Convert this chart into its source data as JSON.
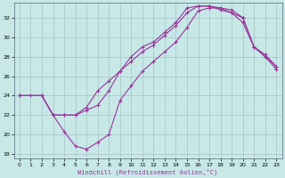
{
  "xlabel": "Windchill (Refroidissement éolien,°C)",
  "xlim": [
    -0.5,
    23.5
  ],
  "ylim": [
    17.5,
    33.5
  ],
  "xticks": [
    0,
    1,
    2,
    3,
    4,
    5,
    6,
    7,
    8,
    9,
    10,
    11,
    12,
    13,
    14,
    15,
    16,
    17,
    18,
    19,
    20,
    21,
    22,
    23
  ],
  "yticks": [
    18,
    20,
    22,
    24,
    26,
    28,
    30,
    32
  ],
  "bg_color": "#c8e8e8",
  "line_color": "#993399",
  "line1_x": [
    0,
    1,
    2,
    3,
    4,
    5,
    6,
    7,
    8,
    9,
    10,
    11,
    12,
    13,
    14,
    15,
    16,
    17,
    18,
    19,
    20,
    21,
    22,
    23
  ],
  "line1_y": [
    24,
    24,
    24,
    22,
    20.3,
    18.8,
    18.5,
    19.2,
    20.0,
    23.5,
    25.0,
    26.5,
    27.5,
    28.5,
    29.5,
    31.0,
    32.7,
    33.0,
    33.0,
    32.8,
    32.0,
    29.0,
    28.0,
    27.0
  ],
  "line2_x": [
    0,
    2,
    3,
    4,
    5,
    6,
    7,
    8,
    9,
    10,
    11,
    12,
    13,
    14,
    15,
    16,
    17,
    18,
    19,
    20,
    21,
    22,
    23
  ],
  "line2_y": [
    24,
    24,
    22,
    22,
    22,
    22.5,
    23.0,
    24.5,
    26.5,
    28.0,
    29.0,
    29.5,
    30.5,
    31.5,
    33.0,
    33.2,
    33.2,
    33.0,
    32.5,
    32.0,
    29.0,
    28.2,
    27.0
  ],
  "line3_x": [
    0,
    2,
    3,
    4,
    5,
    6,
    7,
    8,
    9,
    10,
    11,
    12,
    13,
    14,
    15,
    16,
    17,
    18,
    19,
    20,
    21,
    22,
    23
  ],
  "line3_y": [
    24,
    24,
    22,
    22,
    22,
    22.8,
    24.5,
    25.5,
    26.5,
    27.5,
    28.5,
    29.2,
    30.2,
    31.2,
    32.5,
    33.2,
    33.2,
    32.8,
    32.5,
    31.5,
    29.0,
    28.0,
    26.7
  ]
}
